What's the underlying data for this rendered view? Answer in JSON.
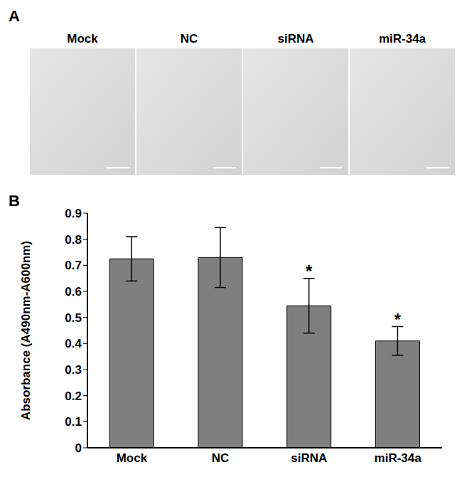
{
  "panel_a": {
    "label": "A",
    "images": [
      "Mock",
      "NC",
      "siRNA",
      "miR-34a"
    ]
  },
  "panel_b": {
    "label": "B"
  },
  "chart_data": {
    "type": "bar",
    "y_label": "Absorbance (A490nm-A600nm)",
    "categories": [
      "Mock",
      "NC",
      "siRNA",
      "miR-34a"
    ],
    "values": [
      0.725,
      0.73,
      0.545,
      0.41
    ],
    "errors": [
      0.085,
      0.115,
      0.105,
      0.055
    ],
    "annotations": [
      null,
      null,
      "*",
      "*"
    ],
    "color": "#7f7f7f",
    "ylim": [
      0,
      0.9
    ],
    "yticks": [
      0,
      0.1,
      0.2,
      0.3,
      0.4,
      0.5,
      0.6,
      0.7,
      0.8,
      0.9
    ],
    "grid": false
  }
}
